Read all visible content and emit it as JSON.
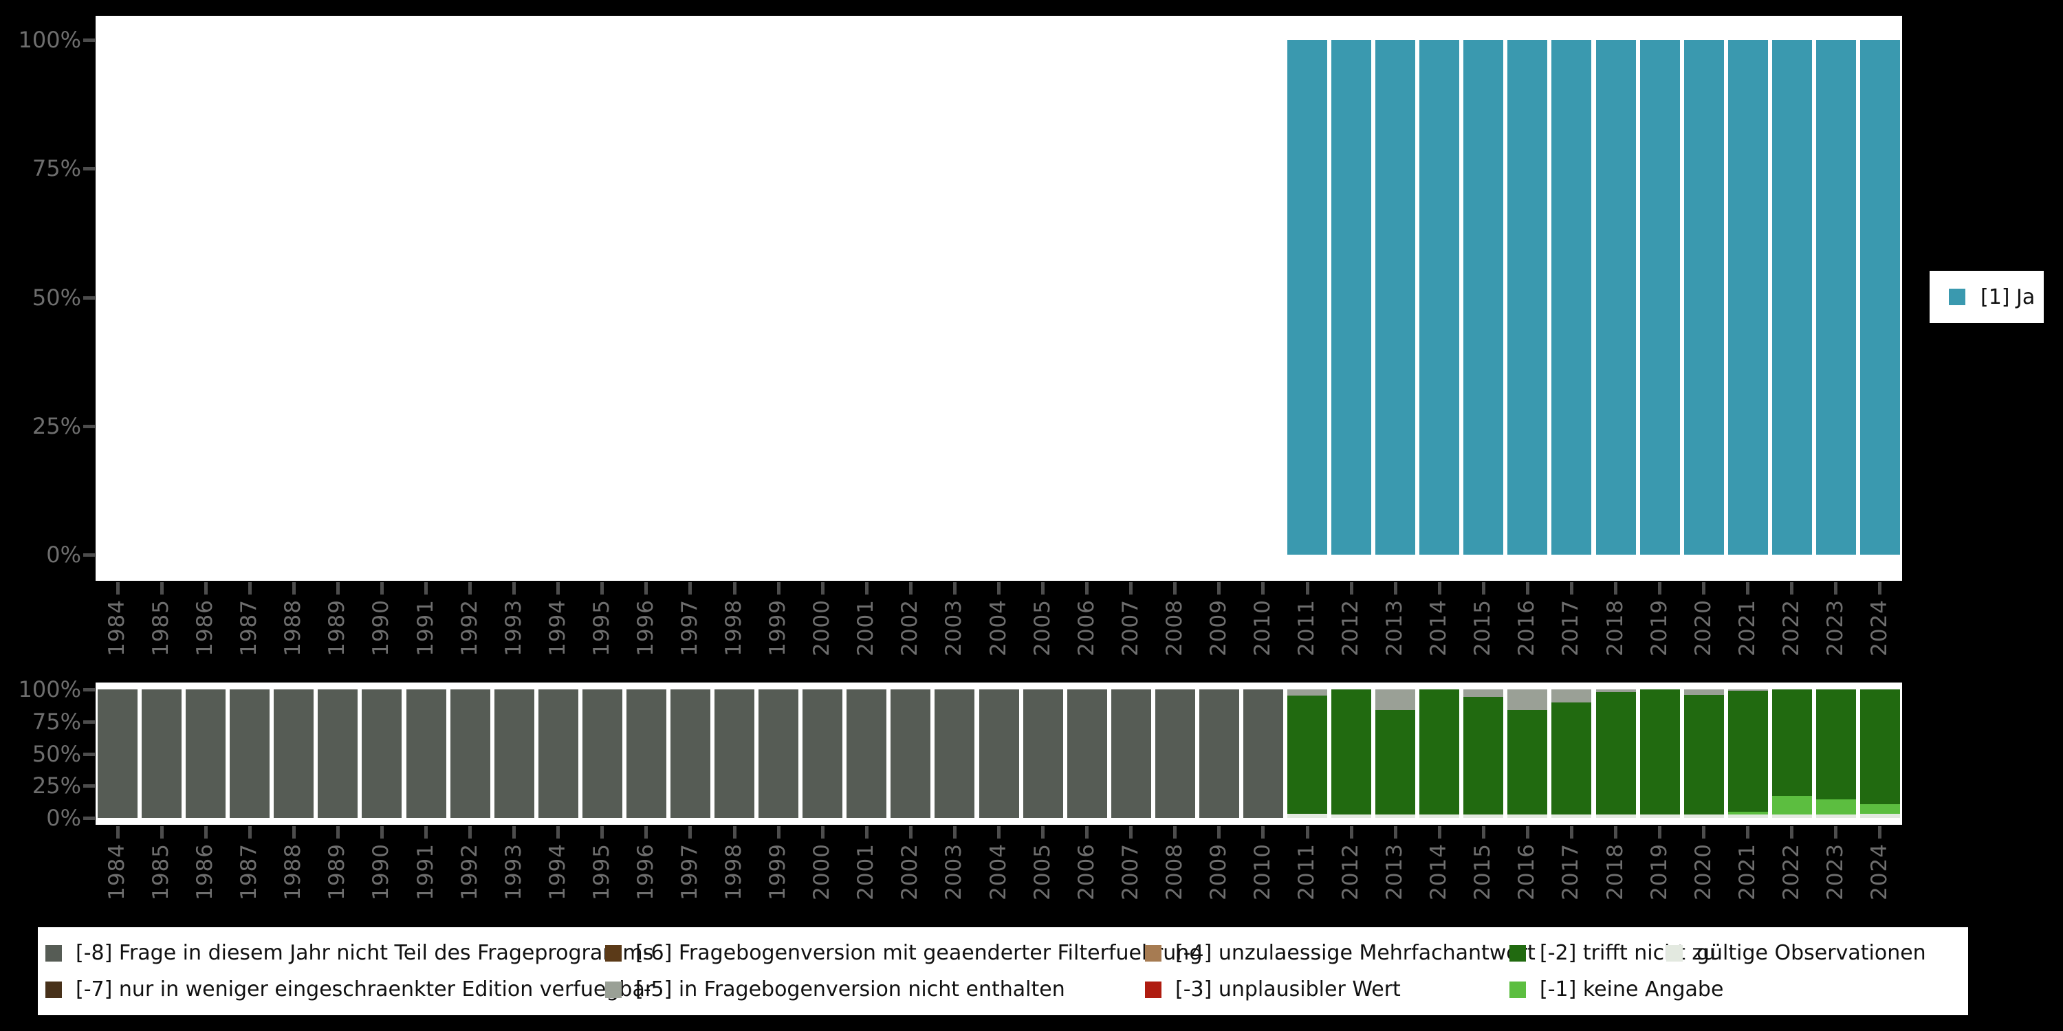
{
  "colors": {
    "ja": "#3A99AF",
    "m8": "#565C55",
    "m7": "#47311A",
    "m6": "#5B3A18",
    "m5": "#9AA096",
    "m4": "#A67B52",
    "m3": "#AF1C10",
    "m2": "#216A10",
    "m1": "#5CBE40",
    "valid": "#E3E9E0",
    "axis_text": "#6E6E6E",
    "tick": "#4D4D4D",
    "plot_background": "#FFFFFF",
    "page_background": "#000000"
  },
  "chart_data": [
    {
      "type": "bar",
      "title": "",
      "xlabel": "",
      "ylabel": "",
      "grid": false,
      "legend_position": "right",
      "ylim": [
        0,
        100
      ],
      "yticks": [
        {
          "label": "100%",
          "value": 100
        },
        {
          "label": "75%",
          "value": 75
        },
        {
          "label": "50%",
          "value": 50
        },
        {
          "label": "25%",
          "value": 25
        },
        {
          "label": "0%",
          "value": 0
        }
      ],
      "categories": [
        "1984",
        "1985",
        "1986",
        "1987",
        "1988",
        "1989",
        "1990",
        "1991",
        "1992",
        "1993",
        "1994",
        "1995",
        "1996",
        "1997",
        "1998",
        "1999",
        "2000",
        "2001",
        "2002",
        "2003",
        "2004",
        "2005",
        "2006",
        "2007",
        "2008",
        "2009",
        "2010",
        "2011",
        "2012",
        "2013",
        "2014",
        "2015",
        "2016",
        "2017",
        "2018",
        "2019",
        "2020",
        "2021",
        "2022",
        "2023",
        "2024"
      ],
      "series": [
        {
          "name": "[1] Ja",
          "color_key": "ja",
          "values": [
            0,
            0,
            0,
            0,
            0,
            0,
            0,
            0,
            0,
            0,
            0,
            0,
            0,
            0,
            0,
            0,
            0,
            0,
            0,
            0,
            0,
            0,
            0,
            0,
            0,
            0,
            0,
            100,
            100,
            100,
            100,
            100,
            100,
            100,
            100,
            100,
            100,
            100,
            100,
            100,
            100
          ]
        }
      ]
    },
    {
      "type": "bar",
      "stacked": true,
      "title": "",
      "xlabel": "",
      "ylabel": "",
      "grid": false,
      "legend_position": "bottom",
      "ylim": [
        0,
        100
      ],
      "yticks": [
        {
          "label": "100%",
          "value": 100
        },
        {
          "label": "75%",
          "value": 75
        },
        {
          "label": "50%",
          "value": 50
        },
        {
          "label": "25%",
          "value": 25
        },
        {
          "label": "0%",
          "value": 0
        }
      ],
      "categories": [
        "1984",
        "1985",
        "1986",
        "1987",
        "1988",
        "1989",
        "1990",
        "1991",
        "1992",
        "1993",
        "1994",
        "1995",
        "1996",
        "1997",
        "1998",
        "1999",
        "2000",
        "2001",
        "2002",
        "2003",
        "2004",
        "2005",
        "2006",
        "2007",
        "2008",
        "2009",
        "2010",
        "2011",
        "2012",
        "2013",
        "2014",
        "2015",
        "2016",
        "2017",
        "2018",
        "2019",
        "2020",
        "2021",
        "2022",
        "2023",
        "2024"
      ],
      "series": [
        {
          "name": "[-8] Frage in diesem Jahr nicht Teil des Frageprogramms",
          "color_key": "m8",
          "values": [
            100,
            100,
            100,
            100,
            100,
            100,
            100,
            100,
            100,
            100,
            100,
            100,
            100,
            100,
            100,
            100,
            100,
            100,
            100,
            100,
            100,
            100,
            100,
            100,
            100,
            100,
            100,
            0,
            0,
            0,
            0,
            0,
            0,
            0,
            0,
            0,
            0,
            0,
            0,
            0,
            0
          ]
        },
        {
          "name": "[-5] in Fragebogenversion nicht enthalten",
          "color_key": "m5",
          "values": [
            0,
            0,
            0,
            0,
            0,
            0,
            0,
            0,
            0,
            0,
            0,
            0,
            0,
            0,
            0,
            0,
            0,
            0,
            0,
            0,
            0,
            0,
            0,
            0,
            0,
            0,
            0,
            5,
            0,
            16,
            0,
            6,
            16,
            10,
            2,
            0,
            4.5,
            1,
            0,
            0,
            0
          ]
        },
        {
          "name": "[-2] trifft nicht zu",
          "color_key": "m2",
          "values": [
            0,
            0,
            0,
            0,
            0,
            0,
            0,
            0,
            0,
            0,
            0,
            0,
            0,
            0,
            0,
            0,
            0,
            0,
            0,
            0,
            0,
            0,
            0,
            0,
            0,
            0,
            0,
            92,
            97.3,
            81.3,
            97.3,
            91.3,
            81.3,
            87.3,
            95.3,
            97.3,
            92.8,
            94,
            82.7,
            85.7,
            89.5
          ]
        },
        {
          "name": "[-1] keine Angabe",
          "color_key": "m1",
          "values": [
            0,
            0,
            0,
            0,
            0,
            0,
            0,
            0,
            0,
            0,
            0,
            0,
            0,
            0,
            0,
            0,
            0,
            0,
            0,
            0,
            0,
            0,
            0,
            0,
            0,
            0,
            0,
            0,
            0,
            0,
            0,
            0,
            0,
            0,
            0,
            0,
            0,
            2.3,
            14.6,
            11.6,
            7.5
          ]
        },
        {
          "name": "gültige Observationen",
          "color_key": "valid",
          "values": [
            0,
            0,
            0,
            0,
            0,
            0,
            0,
            0,
            0,
            0,
            0,
            0,
            0,
            0,
            0,
            0,
            0,
            0,
            0,
            0,
            0,
            0,
            0,
            0,
            0,
            0,
            0,
            3,
            2.7,
            2.7,
            2.7,
            2.7,
            2.7,
            2.7,
            2.7,
            2.7,
            2.7,
            2.7,
            2.7,
            2.7,
            3
          ]
        }
      ]
    }
  ],
  "top_legend": {
    "label": "[1] Ja",
    "color_key": "ja"
  },
  "missing_legend": {
    "items": [
      {
        "label": "[-8] Frage in diesem Jahr nicht Teil des Frageprogramms",
        "color_key": "m8",
        "row": 0,
        "col": 0
      },
      {
        "label": "[-7] nur in weniger eingeschraenkter Edition verfuegbar",
        "color_key": "m7",
        "row": 1,
        "col": 0
      },
      {
        "label": "[-6] Fragebogenversion mit geaenderter Filterfuehrung",
        "color_key": "m6",
        "row": 0,
        "col": 1
      },
      {
        "label": "[-5] in Fragebogenversion nicht enthalten",
        "color_key": "m5",
        "row": 1,
        "col": 1
      },
      {
        "label": "[-4] unzulaessige Mehrfachantwort",
        "color_key": "m4",
        "row": 0,
        "col": 2
      },
      {
        "label": "[-3] unplausibler Wert",
        "color_key": "m3",
        "row": 1,
        "col": 2
      },
      {
        "label": "[-2] trifft nicht zu",
        "color_key": "m2",
        "row": 0,
        "col": 3
      },
      {
        "label": "[-1] keine Angabe",
        "color_key": "m1",
        "row": 1,
        "col": 3
      },
      {
        "label": "gültige Observationen",
        "color_key": "valid",
        "row": 0,
        "col": 4
      }
    ]
  }
}
